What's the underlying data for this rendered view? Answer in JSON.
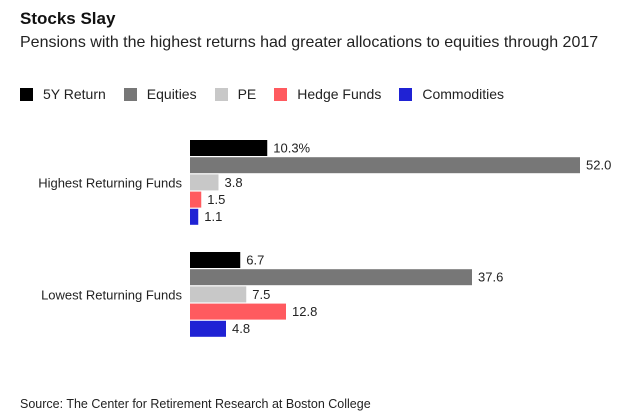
{
  "title": "Stocks Slay",
  "subtitle": "Pensions with the highest returns had greater allocations to equities through 2017",
  "source": "Source: The Center for Retirement Research at Boston College",
  "colors": {
    "5Y Return": "#000000",
    "Equities": "#777777",
    "PE": "#c8c8c8",
    "Hedge Funds": "#ff5a5f",
    "Commodities": "#1f22d4"
  },
  "chart_data": {
    "type": "bar",
    "orientation": "horizontal",
    "categories": [
      "Highest Returning Funds",
      "Lowest Returning Funds"
    ],
    "series": [
      {
        "name": "5Y Return",
        "values": [
          10.3,
          6.7
        ],
        "labels": [
          "10.3%",
          "6.7"
        ]
      },
      {
        "name": "Equities",
        "values": [
          52.0,
          37.6
        ],
        "labels": [
          "52.0",
          "37.6"
        ]
      },
      {
        "name": "PE",
        "values": [
          3.8,
          7.5
        ],
        "labels": [
          "3.8",
          "7.5"
        ]
      },
      {
        "name": "Hedge Funds",
        "values": [
          1.5,
          12.8
        ],
        "labels": [
          "1.5",
          "12.8"
        ]
      },
      {
        "name": "Commodities",
        "values": [
          1.1,
          4.8
        ],
        "labels": [
          "1.1",
          "4.8"
        ]
      }
    ],
    "xlim": [
      0,
      52.0
    ],
    "grid": false,
    "legend": "top-left"
  }
}
